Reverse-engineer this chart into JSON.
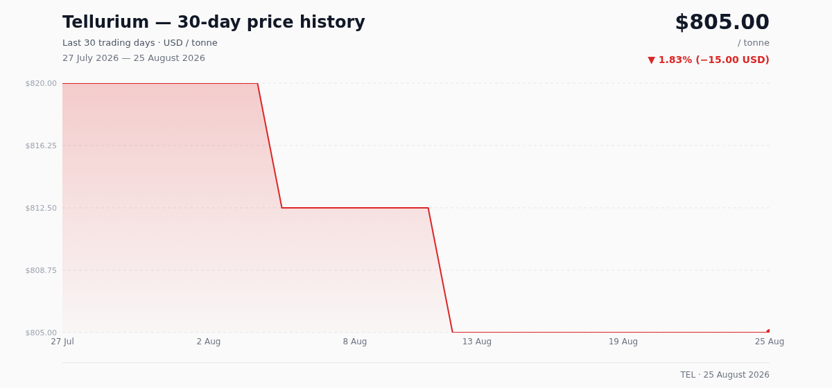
{
  "chart_data": {
    "type": "area",
    "title": "Tellurium — 30-day price history",
    "subtitle": "Last 30 trading days · USD / tonne",
    "annotations": [
      "27 July 2026 — 25 August 2026",
      "$805.00",
      "/ tonne",
      "▼ 1.83% (−15.00 USD)",
      "TEL · 25 August 2026"
    ],
    "x": [
      "2026-07-27",
      "2026-07-28",
      "2026-07-29",
      "2026-07-30",
      "2026-07-31",
      "2026-08-01",
      "2026-08-02",
      "2026-08-03",
      "2026-08-04",
      "2026-08-05",
      "2026-08-06",
      "2026-08-07",
      "2026-08-08",
      "2026-08-09",
      "2026-08-10",
      "2026-08-11",
      "2026-08-12",
      "2026-08-13",
      "2026-08-14",
      "2026-08-15",
      "2026-08-16",
      "2026-08-17",
      "2026-08-18",
      "2026-08-19",
      "2026-08-20",
      "2026-08-21",
      "2026-08-22",
      "2026-08-23",
      "2026-08-24",
      "2026-08-25"
    ],
    "series": [
      {
        "color": "#dc2626",
        "values": [
          820,
          820,
          820,
          820,
          820,
          820,
          820,
          820,
          820,
          812.5,
          812.5,
          812.5,
          812.5,
          812.5,
          812.5,
          812.5,
          805,
          805,
          805,
          805,
          805,
          805,
          805,
          805,
          805,
          805,
          805,
          805,
          805,
          805
        ]
      }
    ],
    "xlim": [
      "2026-07-27",
      "2026-08-25"
    ],
    "xticks": [
      {
        "value": "2026-07-27",
        "label": "27 Jul"
      },
      {
        "value": "2026-08-02",
        "label": "2 Aug"
      },
      {
        "value": "2026-08-08",
        "label": "8 Aug"
      },
      {
        "value": "2026-08-13",
        "label": "13 Aug"
      },
      {
        "value": "2026-08-19",
        "label": "19 Aug"
      },
      {
        "value": "2026-08-25",
        "label": "25 Aug"
      }
    ],
    "ylim": [
      805,
      820
    ],
    "yticks": [
      {
        "value": 805,
        "label": "$805.00"
      },
      {
        "value": 808.75,
        "label": "$808.75"
      },
      {
        "value": 812.5,
        "label": "$812.50"
      },
      {
        "value": 816.25,
        "label": "$816.25"
      },
      {
        "value": 820,
        "label": "$820.00"
      }
    ],
    "grid": "y"
  }
}
